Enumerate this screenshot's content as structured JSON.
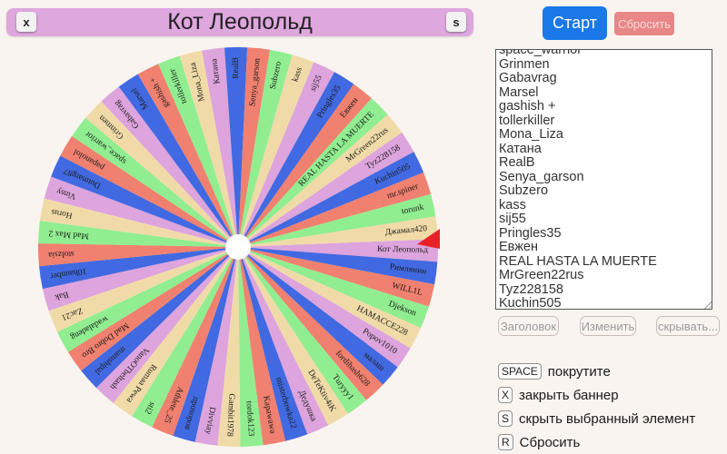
{
  "banner": {
    "title": "Кот Леопольд",
    "close_key": "x",
    "hide_key": "s",
    "color": "#dea7de"
  },
  "controls": {
    "start_label": "Старт",
    "reset_label": "Сбросить",
    "start_color": "#1a78e8",
    "reset_color": "#e88787"
  },
  "roster": {
    "lines": [
      "space_warrior",
      "Grinmen",
      "Gabavrag",
      "Marsel",
      "gashish +",
      "tollerkiller",
      "Mona_Liza",
      "Катана",
      "RealB",
      "Senya_garson",
      "Subzero",
      "kass",
      "sij55",
      "Pringles35",
      "Евжен",
      "REAL HASTA LA MUERTE",
      "MrGreen22rus",
      "Tyz228158",
      "Kuchin505"
    ]
  },
  "actions": {
    "title_label": "Заголовок",
    "edit_label": "Изменить",
    "hide_label": "скрывать..."
  },
  "shortcuts": [
    {
      "key": "SPACE",
      "label": "покрутите"
    },
    {
      "key": "X",
      "label": "закрыть баннер"
    },
    {
      "key": "S",
      "label": "скрыть выбранный элемент"
    },
    {
      "key": "R",
      "label": "Сбросить"
    }
  ],
  "wheel": {
    "selected": "Кот Леопольд",
    "names": [
      "Кот Леопольд",
      "Римлянин",
      "WILL1L",
      "Djekson",
      "HAMACCE228",
      "Popov1010",
      "малаш",
      "fordihash628",
      "Turyyy1",
      "DeTeKtiv4iK",
      "Дедушка",
      "misterbowka22",
      "Kapawawa",
      "tordok123",
      "Gambit1978",
      "Divviay",
      "прохоров",
      "Athlete_25",
      "sti2",
      "Rumaa Pewa",
      "VanoOTbeltash",
      "mamshipal",
      "Mad Dobro Bro",
      "wadaladeng",
      "Zac21",
      "Bak",
      "10haunber",
      "stolzsia",
      "Mad Max 2",
      "Horus",
      "Vinsy",
      "Dutmarg87",
      "papanolol",
      "space_warrior",
      "Grinmen",
      "Gabavrag",
      "Marsel",
      "gashish +",
      "tollerkiller",
      "Mona_Liza",
      "Катана",
      "RealB",
      "Senya_garson",
      "Subzero",
      "kass",
      "sij55",
      "Pringles35",
      "Евжен",
      "REAL HASTA LA MUERTE",
      "MrGreen22rus",
      "Tyz228158",
      "Kuchin505",
      "mr.spiner",
      "torunk",
      "Джамал420"
    ],
    "colors": [
      "#dda4dd",
      "#4169e1",
      "#f0806f",
      "#90ee90",
      "#f0dba8"
    ],
    "pointer_color": "#e82127",
    "hub_color": "#ffffff"
  }
}
